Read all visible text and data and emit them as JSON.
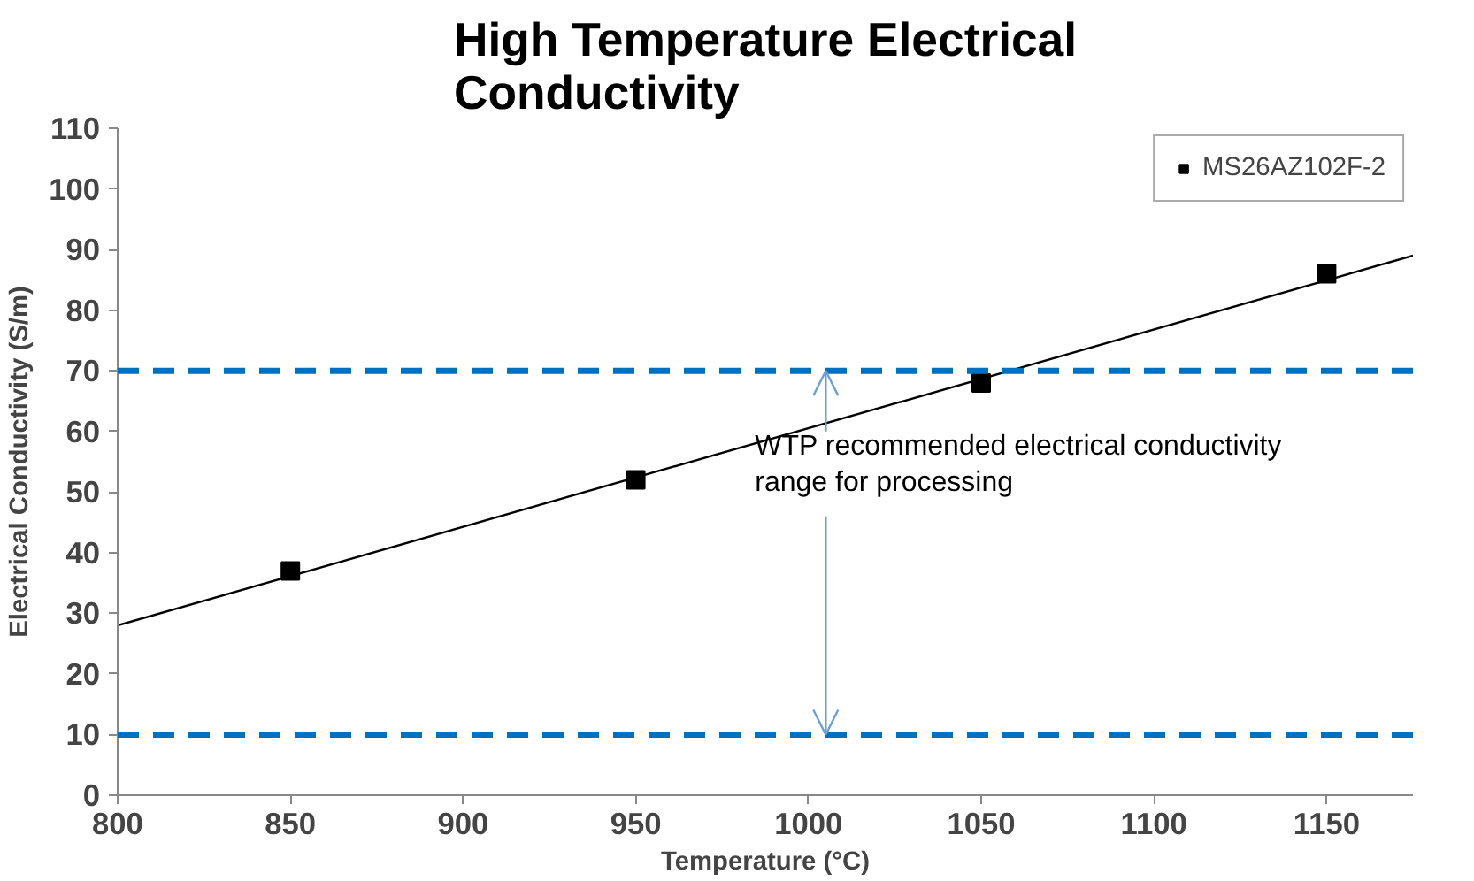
{
  "chart_data": {
    "type": "scatter",
    "title": "High Temperature Electrical Conductivity",
    "xlabel": "Temperature (°C)",
    "ylabel": "Electrical Conductivity (S/m)",
    "x": [
      850,
      950,
      1050,
      1150
    ],
    "series": [
      {
        "name": "MS26AZ102F-2",
        "color": "#000000",
        "values": [
          37,
          52,
          68,
          86
        ],
        "marker": "square"
      },
      {
        "type": "line",
        "color": "#000000",
        "x": [
          800,
          1175
        ],
        "values": [
          28,
          89
        ],
        "marker": "none"
      }
    ],
    "xlim": [
      800,
      1175
    ],
    "xticks": [
      800,
      850,
      900,
      950,
      1000,
      1050,
      1100,
      1150
    ],
    "ylim": [
      0,
      110
    ],
    "yticks": [
      0,
      10,
      20,
      30,
      40,
      50,
      60,
      70,
      80,
      90,
      100,
      110
    ],
    "ref_lines": [
      {
        "axis": "y",
        "value": 70,
        "label": null,
        "color": "#0070c0",
        "line_style": "dashed"
      },
      {
        "axis": "y",
        "value": 10,
        "label": null,
        "color": "#0070c0",
        "line_style": "dashed"
      }
    ],
    "annotations": [
      {
        "text": "WTP recommended electrical conductivity range for processing",
        "x": 1005,
        "y": 70
      }
    ],
    "grid": false,
    "legend": "top right"
  }
}
